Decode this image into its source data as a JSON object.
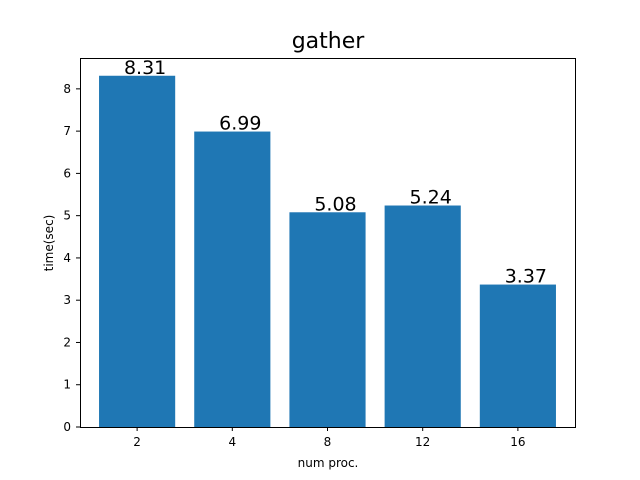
{
  "chart_data": {
    "type": "bar",
    "title": "gather",
    "xlabel": "num proc.",
    "ylabel": "time(sec)",
    "categories": [
      "2",
      "4",
      "8",
      "12",
      "16"
    ],
    "values": [
      8.31,
      6.99,
      5.08,
      5.24,
      3.37
    ],
    "data_labels": [
      "8.31",
      "6.99",
      "5.08",
      "5.24",
      "3.37"
    ],
    "ylim": [
      0,
      8.73
    ],
    "yticks": [
      0,
      1,
      2,
      3,
      4,
      5,
      6,
      7,
      8
    ],
    "bar_color": "#1f77b4",
    "grid": false,
    "legend": "none"
  }
}
